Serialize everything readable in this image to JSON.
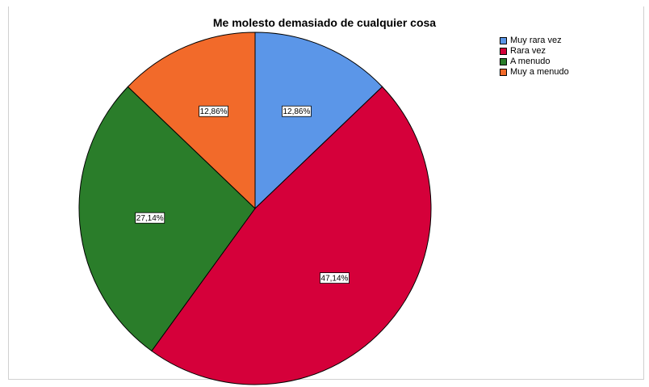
{
  "chart_data": {
    "type": "pie",
    "title": "Me molesto demasiado de cualquier cosa",
    "categories": [
      "Muy rara vez",
      "Rara vez",
      "A menudo",
      "Muy a menudo"
    ],
    "values": [
      12.86,
      47.14,
      27.14,
      12.86
    ],
    "labels": [
      "12,86%",
      "47,14%",
      "27,14%",
      "12,86%"
    ],
    "colors": [
      "#5b96e8",
      "#d5003a",
      "#2a7d2a",
      "#f26a2a"
    ],
    "legend_position": "top-right"
  }
}
